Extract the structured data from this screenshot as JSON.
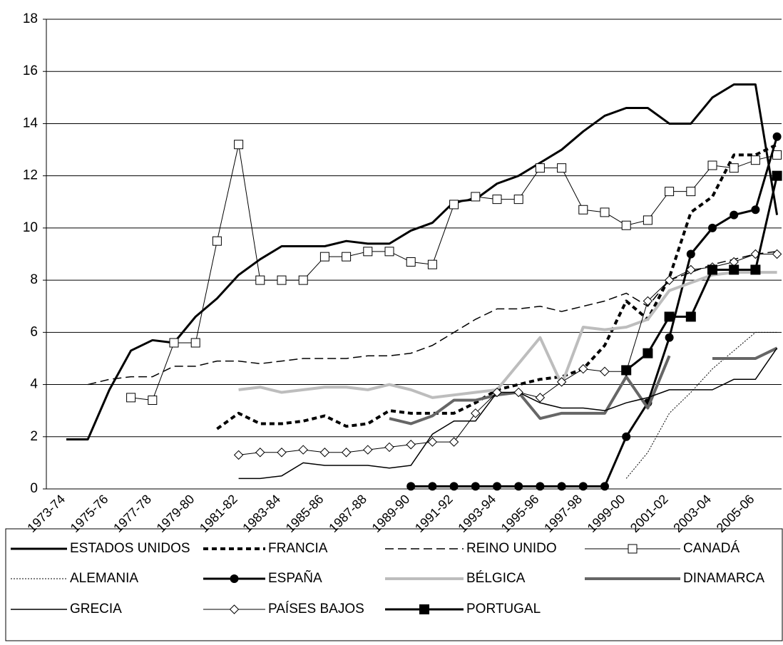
{
  "chart_data": {
    "type": "line",
    "categories": [
      "1973-74",
      null,
      "1975-76",
      null,
      "1977-78",
      null,
      "1979-80",
      null,
      "1981-82",
      null,
      "1983-84",
      null,
      "1985-86",
      null,
      "1987-88",
      null,
      "1989-90",
      null,
      "1991-92",
      null,
      "1993-94",
      null,
      "1995-96",
      null,
      "1997-98",
      null,
      "1999-00",
      null,
      "2001-02",
      null,
      "2003-04",
      null,
      "2005-06",
      null
    ],
    "ylim": [
      0,
      18
    ],
    "yticks": [
      0,
      2,
      4,
      6,
      8,
      10,
      12,
      14,
      16,
      18
    ],
    "grid": true,
    "legend": "bottom",
    "series": [
      {
        "name": "ESTADOS UNIDOS",
        "color": "#000000",
        "width": 3,
        "dash": "none",
        "marker": "none",
        "values": [
          1.9,
          1.9,
          3.8,
          5.3,
          5.7,
          5.6,
          6.6,
          7.3,
          8.2,
          8.8,
          9.3,
          9.3,
          9.3,
          9.5,
          9.4,
          9.4,
          9.9,
          10.2,
          11.0,
          11.1,
          11.7,
          12.0,
          12.5,
          13.0,
          13.7,
          14.3,
          14.6,
          14.6,
          14.0,
          14.0,
          15.0,
          15.5,
          15.5,
          10.5
        ]
      },
      {
        "name": "FRANCIA",
        "color": "#000000",
        "width": 4,
        "dash": "7,5",
        "marker": "none",
        "values": [
          null,
          null,
          null,
          null,
          null,
          null,
          null,
          2.3,
          2.9,
          2.5,
          2.5,
          2.6,
          2.8,
          2.4,
          2.5,
          3.0,
          2.9,
          2.9,
          2.9,
          3.3,
          3.8,
          4.0,
          4.2,
          4.3,
          4.6,
          5.5,
          7.2,
          6.5,
          8.1,
          10.6,
          11.2,
          12.8,
          12.8,
          13.2
        ]
      },
      {
        "name": "REINO UNIDO",
        "color": "#000000",
        "width": 1.5,
        "dash": "12,6",
        "marker": "none",
        "values": [
          null,
          4.0,
          4.2,
          4.3,
          4.3,
          4.7,
          4.7,
          4.9,
          4.9,
          4.8,
          4.9,
          5.0,
          5.0,
          5.0,
          5.1,
          5.1,
          5.2,
          5.5,
          6.0,
          6.5,
          6.9,
          6.9,
          7.0,
          6.8,
          7.0,
          7.2,
          7.5,
          7.0,
          8.0,
          8.3,
          8.6,
          8.8,
          9.0,
          9.1
        ]
      },
      {
        "name": "CANADÁ",
        "color": "#000000",
        "width": 1,
        "dash": "none",
        "marker": "square-open",
        "values": [
          null,
          null,
          null,
          3.5,
          3.4,
          5.6,
          5.6,
          9.5,
          13.2,
          8.0,
          8.0,
          8.0,
          8.9,
          8.9,
          9.1,
          9.1,
          8.7,
          8.6,
          10.9,
          11.2,
          11.1,
          11.1,
          12.3,
          12.3,
          10.7,
          10.6,
          10.1,
          10.3,
          11.4,
          11.4,
          12.4,
          12.3,
          12.6,
          12.8
        ]
      },
      {
        "name": "ALEMANIA",
        "color": "#000000",
        "width": 1,
        "dash": "2,2",
        "marker": "none",
        "values": [
          null,
          null,
          null,
          null,
          null,
          null,
          null,
          null,
          null,
          null,
          null,
          null,
          null,
          null,
          null,
          null,
          null,
          null,
          null,
          null,
          null,
          null,
          null,
          null,
          null,
          null,
          0.4,
          1.4,
          2.9,
          3.7,
          4.6,
          5.3,
          6.0,
          6.0
        ]
      },
      {
        "name": "ESPAÑA",
        "color": "#000000",
        "width": 3,
        "dash": "none",
        "marker": "circle",
        "values": [
          null,
          null,
          null,
          null,
          null,
          null,
          null,
          null,
          null,
          null,
          null,
          null,
          null,
          null,
          null,
          null,
          0.1,
          0.1,
          0.1,
          0.1,
          0.1,
          0.1,
          0.1,
          0.1,
          0.1,
          0.1,
          2.0,
          3.3,
          5.8,
          9.0,
          10.0,
          10.5,
          10.7,
          13.5
        ]
      },
      {
        "name": "BÉLGICA",
        "color": "#bdbdbd",
        "width": 4,
        "dash": "none",
        "marker": "none",
        "values": [
          null,
          null,
          null,
          null,
          null,
          null,
          null,
          null,
          3.8,
          3.9,
          3.7,
          3.8,
          3.9,
          3.9,
          3.8,
          4.0,
          3.8,
          3.5,
          3.6,
          3.7,
          3.8,
          4.8,
          5.8,
          4.0,
          6.2,
          6.1,
          6.2,
          6.5,
          7.6,
          7.9,
          8.2,
          8.3,
          8.3,
          8.3
        ]
      },
      {
        "name": "DINAMARCA",
        "color": "#666666",
        "width": 4,
        "dash": "none",
        "marker": "none",
        "values": [
          null,
          null,
          null,
          null,
          null,
          null,
          null,
          null,
          null,
          null,
          null,
          null,
          null,
          null,
          null,
          2.7,
          2.5,
          2.8,
          3.4,
          3.4,
          3.6,
          3.7,
          2.7,
          2.9,
          2.9,
          2.9,
          4.3,
          3.1,
          5.1,
          null,
          5.0,
          5.0,
          5.0,
          5.4
        ]
      },
      {
        "name": "GRECIA",
        "color": "#000000",
        "width": 1.5,
        "dash": "none",
        "marker": "none",
        "values": [
          null,
          null,
          null,
          null,
          null,
          null,
          null,
          null,
          0.4,
          0.4,
          0.5,
          1.0,
          0.9,
          0.9,
          0.9,
          0.8,
          0.9,
          2.1,
          2.6,
          2.6,
          3.7,
          3.7,
          3.3,
          3.1,
          3.1,
          3.0,
          3.3,
          3.5,
          3.8,
          3.8,
          3.8,
          4.2,
          4.2,
          5.4
        ]
      },
      {
        "name": "PAÍSES BAJOS",
        "color": "#000000",
        "width": 1,
        "dash": "none",
        "marker": "diamond-open",
        "values": [
          null,
          null,
          null,
          null,
          null,
          null,
          null,
          null,
          1.3,
          1.4,
          1.4,
          1.5,
          1.4,
          1.4,
          1.5,
          1.6,
          1.7,
          1.8,
          1.8,
          2.9,
          3.7,
          3.7,
          3.5,
          4.1,
          4.6,
          4.5,
          4.5,
          7.2,
          8.0,
          8.4,
          8.5,
          8.7,
          9.0,
          9.0
        ]
      },
      {
        "name": "PORTUGAL",
        "color": "#000000",
        "width": 3,
        "dash": "none",
        "marker": "square",
        "values": [
          null,
          null,
          null,
          null,
          null,
          null,
          null,
          null,
          null,
          null,
          null,
          null,
          null,
          null,
          null,
          null,
          null,
          null,
          null,
          null,
          null,
          null,
          null,
          null,
          null,
          null,
          4.55,
          5.2,
          6.6,
          6.6,
          8.4,
          8.4,
          8.4,
          12.0
        ]
      }
    ]
  }
}
